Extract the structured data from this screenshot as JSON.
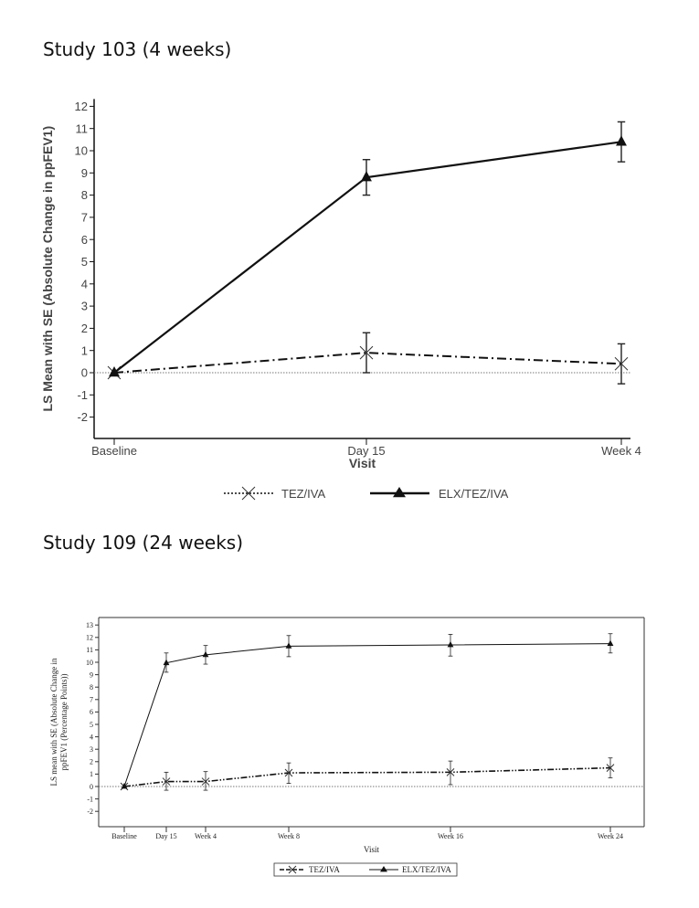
{
  "headings": [
    "Study 103 (4 weeks)",
    "Study 109 (24 weeks)"
  ],
  "chart_data": [
    {
      "type": "line",
      "title": "Study 103 (4 weeks)",
      "xlabel": "Visit",
      "ylabel": "LS Mean with SE (Absolute Change in ppFEV1)",
      "categories": [
        "Baseline",
        "Day 15",
        "Week 4"
      ],
      "ylim": [
        -2,
        12
      ],
      "yticks": [
        -2,
        -1,
        0,
        1,
        2,
        3,
        4,
        5,
        6,
        7,
        8,
        9,
        10,
        11,
        12
      ],
      "reference_line": 0,
      "legend_position": "bottom",
      "series": [
        {
          "name": "TEZ/IVA",
          "marker": "x",
          "line": "dash-dot",
          "values": [
            0,
            0.9,
            0.4
          ],
          "se_low": [
            0,
            0.0,
            -0.5
          ],
          "se_high": [
            0,
            1.8,
            1.3
          ]
        },
        {
          "name": "ELX/TEZ/IVA",
          "marker": "triangle",
          "line": "solid",
          "values": [
            0,
            8.8,
            10.4
          ],
          "se_low": [
            0,
            8.0,
            9.5
          ],
          "se_high": [
            0,
            9.6,
            11.3
          ]
        }
      ]
    },
    {
      "type": "line",
      "title": "Study 109 (24 weeks)",
      "xlabel": "Visit",
      "ylabel": [
        "LS mean with SE (Absolute Change in",
        "ppFEV1 (Percentage Points))"
      ],
      "categories": [
        "Baseline",
        "Day 15",
        "Week 4",
        "Week 8",
        "Week 16",
        "Week 24"
      ],
      "ylim": [
        -2,
        13
      ],
      "yticks": [
        -2,
        -1,
        0,
        1,
        2,
        3,
        4,
        5,
        6,
        7,
        8,
        9,
        10,
        11,
        12,
        13
      ],
      "reference_line": 0,
      "legend_position": "bottom",
      "series": [
        {
          "name": "TEZ/IVA",
          "marker": "x",
          "line": "dash-dot",
          "values": [
            0,
            0.4,
            0.4,
            1.1,
            1.15,
            1.5
          ],
          "se_low": [
            0,
            -0.3,
            -0.3,
            0.25,
            0.15,
            0.7
          ],
          "se_high": [
            0,
            1.15,
            1.2,
            1.9,
            2.05,
            2.3
          ]
        },
        {
          "name": "ELX/TEZ/IVA",
          "marker": "triangle",
          "line": "solid",
          "values": [
            0,
            9.95,
            10.6,
            11.3,
            11.4,
            11.5
          ],
          "se_low": [
            0,
            9.2,
            9.85,
            10.45,
            10.5,
            10.75
          ],
          "se_high": [
            0,
            10.75,
            11.35,
            12.15,
            12.25,
            12.3
          ]
        }
      ]
    }
  ]
}
